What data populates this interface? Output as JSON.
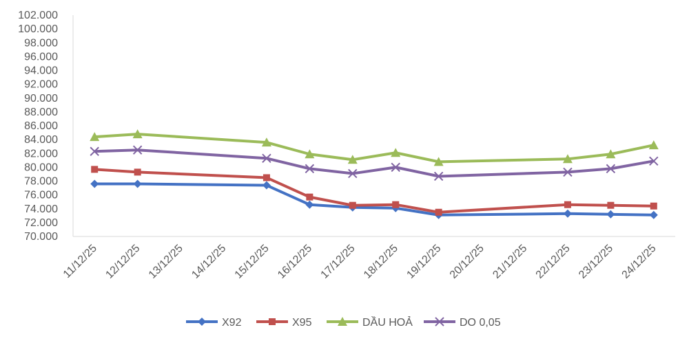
{
  "chart_data": {
    "type": "line",
    "title": "",
    "xlabel": "",
    "ylabel": "",
    "ylim": [
      70000,
      102000
    ],
    "ytick_step": 2000,
    "y_tick_labels": [
      "70.000",
      "72.000",
      "74.000",
      "76.000",
      "78.000",
      "80.000",
      "82.000",
      "84.000",
      "86.000",
      "88.000",
      "90.000",
      "92.000",
      "94.000",
      "96.000",
      "98.000",
      "100.000",
      "102.000"
    ],
    "categories": [
      "11/12/25",
      "12/12/25",
      "13/12/25",
      "14/12/25",
      "15/12/25",
      "16/12/25",
      "17/12/25",
      "18/12/25",
      "19/12/25",
      "20/12/25",
      "21/12/25",
      "22/12/25",
      "23/12/25",
      "24/12/25"
    ],
    "grid": false,
    "legend_position": "bottom",
    "series": [
      {
        "name": "X92",
        "color": "#4472c4",
        "marker": "diamond",
        "values": [
          77600,
          77600,
          null,
          null,
          77400,
          74600,
          74200,
          74100,
          73100,
          null,
          null,
          73300,
          73200,
          73100
        ]
      },
      {
        "name": "X95",
        "color": "#c0504d",
        "marker": "square",
        "values": [
          79700,
          79300,
          null,
          null,
          78500,
          75700,
          74500,
          74600,
          73500,
          null,
          null,
          74600,
          74500,
          74400
        ]
      },
      {
        "name": "DẦU HOẢ",
        "color": "#9bbb59",
        "marker": "triangle",
        "values": [
          84400,
          84800,
          null,
          null,
          83600,
          81900,
          81100,
          82100,
          80800,
          null,
          null,
          81200,
          81900,
          83200
        ]
      },
      {
        "name": "DO 0,05",
        "color": "#8064a2",
        "marker": "x",
        "values": [
          82300,
          82500,
          null,
          null,
          81300,
          79800,
          79100,
          80000,
          78700,
          null,
          null,
          79300,
          79800,
          80900
        ]
      }
    ]
  }
}
